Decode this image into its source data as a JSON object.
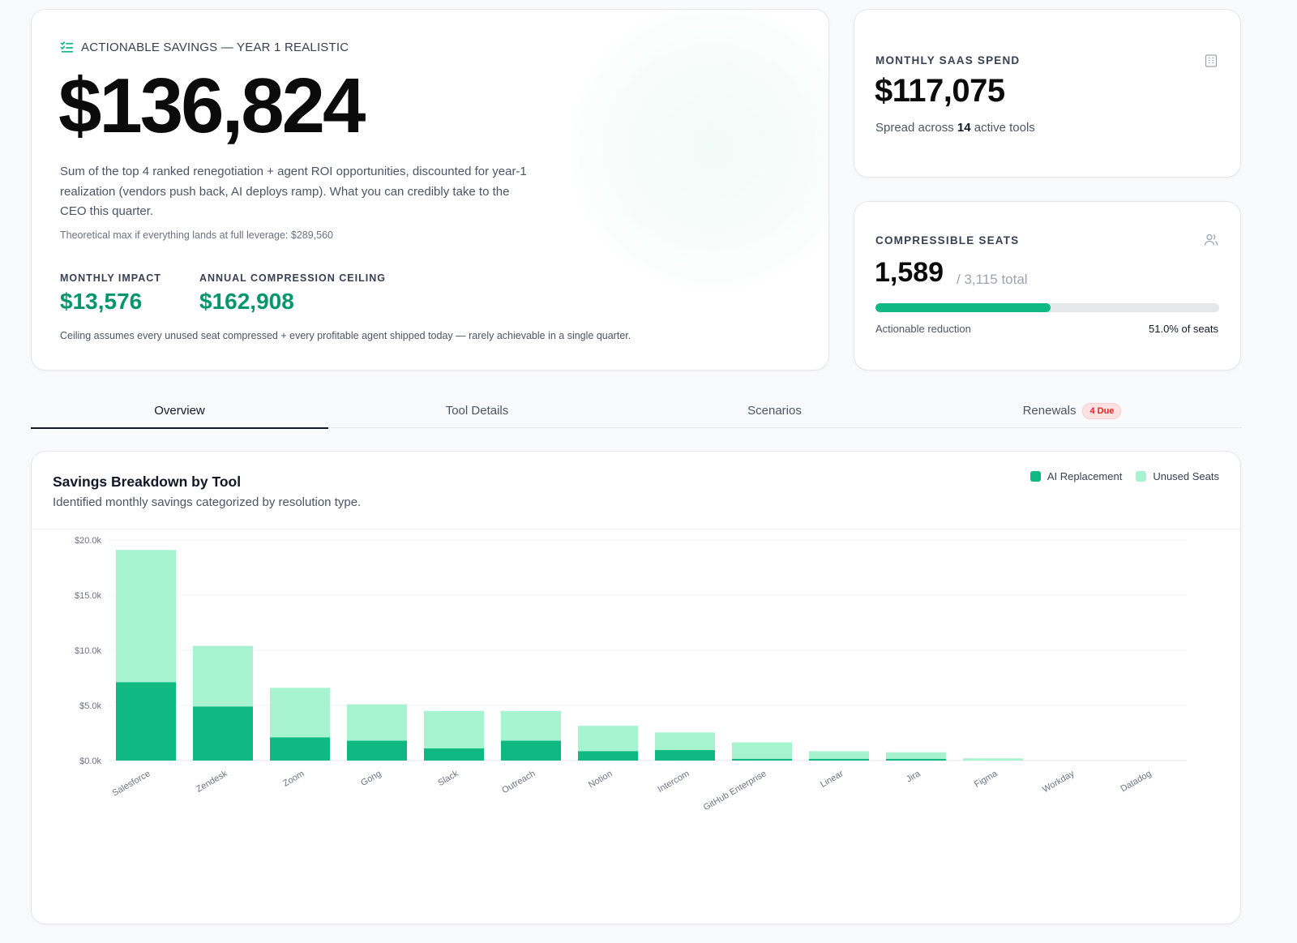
{
  "hero": {
    "label": "ACTIONABLE SAVINGS — YEAR 1 REALISTIC",
    "value": "$136,824",
    "description": "Sum of the top 4 ranked renegotiation + agent ROI opportunities, discounted for year-1 realization (vendors push back, AI deploys ramp). What you can credibly take to the CEO this quarter.",
    "theoretical_max": "Theoretical max if everything lands at full leverage: $289,560",
    "monthly_impact_label": "MONTHLY IMPACT",
    "monthly_impact_value": "$13,576",
    "ceiling_label": "ANNUAL COMPRESSION CEILING",
    "ceiling_value": "$162,908",
    "note": "Ceiling assumes every unused seat compressed + every profitable agent shipped today — rarely achievable in a single quarter."
  },
  "spend": {
    "label": "MONTHLY SAAS SPEND",
    "value": "$117,075",
    "sub_prefix": "Spread across",
    "tools_count": "14",
    "sub_suffix": "active tools",
    "icon": "building-icon"
  },
  "seats": {
    "label": "COMPRESSIBLE SEATS",
    "value": "1,589",
    "total": "/ 3,115 total",
    "progress_fraction": 0.51,
    "caption_left": "Actionable reduction",
    "caption_right": "51.0% of seats",
    "icon": "users-icon"
  },
  "tabs": [
    {
      "label": "Overview",
      "active": true
    },
    {
      "label": "Tool Details",
      "active": false
    },
    {
      "label": "Scenarios",
      "active": false
    },
    {
      "label": "Renewals",
      "active": false,
      "badge": "4 Due"
    }
  ],
  "chart_card": {
    "title": "Savings Breakdown by Tool",
    "subtitle": "Identified monthly savings categorized by resolution type."
  },
  "colors": {
    "ai_replacement": "#10b981",
    "unused_seats": "#a7f3d0",
    "accent_green": "#059669"
  },
  "chart_data": {
    "type": "bar",
    "stacked": true,
    "categories": [
      "Salesforce",
      "Zendesk",
      "Zoom",
      "Gong",
      "Slack",
      "Outreach",
      "Notion",
      "Intercom",
      "GitHub Enterprise",
      "Linear",
      "Jira",
      "Figma",
      "Workday",
      "Datadog"
    ],
    "series": [
      {
        "name": "AI Replacement",
        "values": [
          7100,
          4900,
          2100,
          1800,
          1100,
          1800,
          850,
          950,
          150,
          150,
          150,
          0,
          0,
          0
        ]
      },
      {
        "name": "Unused Seats",
        "values": [
          12000,
          5500,
          4500,
          3300,
          3400,
          2700,
          2300,
          1600,
          1500,
          700,
          600,
          200,
          0,
          0
        ]
      }
    ],
    "y_ticks": [
      "$0.0k",
      "$5.0k",
      "$10.0k",
      "$15.0k",
      "$20.0k"
    ],
    "ylim": [
      0,
      20000
    ],
    "grid": true,
    "legend": "top-right"
  }
}
